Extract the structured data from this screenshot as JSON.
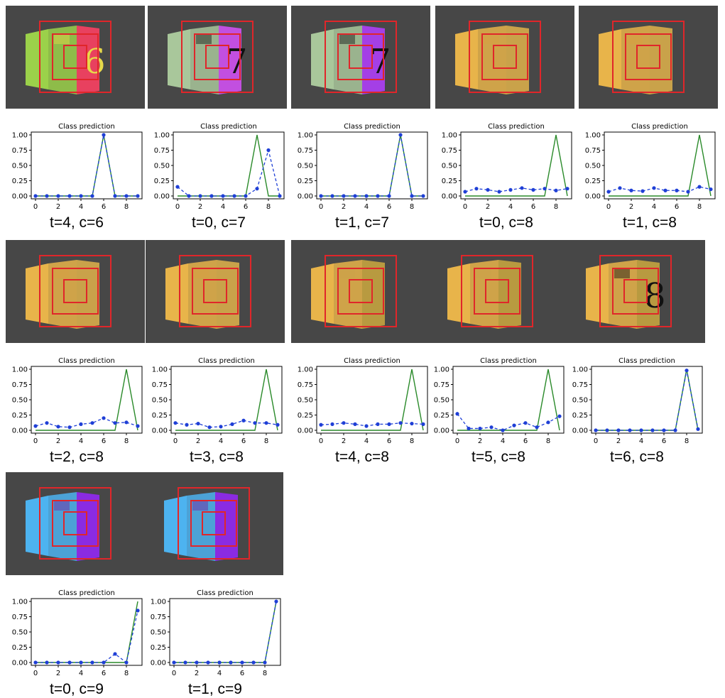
{
  "chart_data": [
    {
      "type": "line",
      "title": "Class prediction",
      "caption": "t=4, c=6",
      "x": [
        0,
        1,
        2,
        3,
        4,
        5,
        6,
        7,
        8,
        9
      ],
      "ylim": [
        0,
        1
      ],
      "xticks": [
        0,
        2,
        4,
        6,
        8
      ],
      "yticks": [
        "0.00",
        "0.25",
        "0.50",
        "0.75",
        "1.00"
      ],
      "series": [
        {
          "style": "solid-green",
          "values": [
            0,
            0,
            0,
            0,
            0,
            0,
            1,
            0,
            0,
            0
          ]
        },
        {
          "style": "dashed-blue-markers",
          "values": [
            0,
            0,
            0,
            0,
            0,
            0,
            1,
            0,
            0,
            0
          ]
        }
      ],
      "scene": {
        "colors": [
          "#9bd14a",
          "#e8415f",
          "#e8d84a"
        ],
        "cue": "6"
      }
    },
    {
      "type": "line",
      "title": "Class prediction",
      "caption": "t=0, c=7",
      "x": [
        0,
        1,
        2,
        3,
        4,
        5,
        6,
        7,
        8,
        9
      ],
      "ylim": [
        0,
        1
      ],
      "xticks": [
        0,
        2,
        4,
        6,
        8
      ],
      "yticks": [
        "0.00",
        "0.25",
        "0.50",
        "0.75",
        "1.00"
      ],
      "series": [
        {
          "style": "solid-green",
          "values": [
            0,
            0,
            0,
            0,
            0,
            0,
            0,
            1,
            0,
            0
          ]
        },
        {
          "style": "dashed-blue-markers",
          "values": [
            0.15,
            0,
            0,
            0,
            0,
            0,
            0,
            0.12,
            0.75,
            0
          ]
        }
      ],
      "scene": {
        "colors": [
          "#a9c79b",
          "#c24fe0",
          "#111111"
        ],
        "cue": "7"
      }
    },
    {
      "type": "line",
      "title": "Class prediction",
      "caption": "t=1, c=7",
      "x": [
        0,
        1,
        2,
        3,
        4,
        5,
        6,
        7,
        8,
        9
      ],
      "ylim": [
        0,
        1
      ],
      "xticks": [
        0,
        2,
        4,
        6,
        8
      ],
      "yticks": [
        "0.00",
        "0.25",
        "0.50",
        "0.75",
        "1.00"
      ],
      "series": [
        {
          "style": "solid-green",
          "values": [
            0,
            0,
            0,
            0,
            0,
            0,
            0,
            1,
            0,
            0
          ]
        },
        {
          "style": "dashed-blue-markers",
          "values": [
            0,
            0,
            0,
            0,
            0,
            0,
            0,
            1,
            0,
            0
          ]
        }
      ],
      "scene": {
        "colors": [
          "#a9c79b",
          "#a43fe6",
          "#111111"
        ],
        "cue": "7"
      }
    },
    {
      "type": "line",
      "title": "Class prediction",
      "caption": "t=0, c=8",
      "x": [
        0,
        1,
        2,
        3,
        4,
        5,
        6,
        7,
        8,
        9
      ],
      "ylim": [
        0,
        1
      ],
      "xticks": [
        0,
        2,
        4,
        6,
        8
      ],
      "yticks": [
        "0.00",
        "0.25",
        "0.50",
        "0.75",
        "1.00"
      ],
      "series": [
        {
          "style": "solid-green",
          "values": [
            0,
            0,
            0,
            0,
            0,
            0,
            0,
            0,
            1,
            0
          ]
        },
        {
          "style": "dashed-blue-markers",
          "values": [
            0.07,
            0.12,
            0.1,
            0.07,
            0.1,
            0.13,
            0.1,
            0.12,
            0.09,
            0.12
          ]
        }
      ],
      "scene": {
        "colors": [
          "#e8b44a",
          "#c9a24a",
          "#d8a040"
        ],
        "cue": ""
      }
    },
    {
      "type": "line",
      "title": "Class prediction",
      "caption": "t=1, c=8",
      "x": [
        0,
        1,
        2,
        3,
        4,
        5,
        6,
        7,
        8,
        9
      ],
      "ylim": [
        0,
        1
      ],
      "xticks": [
        0,
        2,
        4,
        6,
        8
      ],
      "yticks": [
        "0.00",
        "0.25",
        "0.50",
        "0.75",
        "1.00"
      ],
      "series": [
        {
          "style": "solid-green",
          "values": [
            0,
            0,
            0,
            0,
            0,
            0,
            0,
            0,
            1,
            0
          ]
        },
        {
          "style": "dashed-blue-markers",
          "values": [
            0.07,
            0.13,
            0.09,
            0.08,
            0.13,
            0.09,
            0.09,
            0.07,
            0.15,
            0.11
          ]
        }
      ],
      "scene": {
        "colors": [
          "#e8b44a",
          "#c9a24a",
          "#d8a040"
        ],
        "cue": ""
      }
    },
    {
      "type": "line",
      "title": "Class prediction",
      "caption": "t=2, c=8",
      "x": [
        0,
        1,
        2,
        3,
        4,
        5,
        6,
        7,
        8,
        9
      ],
      "ylim": [
        0,
        1
      ],
      "xticks": [
        0,
        2,
        4,
        6,
        8
      ],
      "yticks": [
        "0.00",
        "0.25",
        "0.50",
        "0.75",
        "1.00"
      ],
      "series": [
        {
          "style": "solid-green",
          "values": [
            0,
            0,
            0,
            0,
            0,
            0,
            0,
            0,
            1,
            0
          ]
        },
        {
          "style": "dashed-blue-markers",
          "values": [
            0.07,
            0.12,
            0.06,
            0.05,
            0.1,
            0.12,
            0.2,
            0.12,
            0.13,
            0.07
          ]
        }
      ],
      "scene": {
        "colors": [
          "#e8b44a",
          "#c9a24a",
          "#d8a040"
        ],
        "cue": ""
      }
    },
    {
      "type": "line",
      "title": "Class prediction",
      "caption": "t=3, c=8",
      "x": [
        0,
        1,
        2,
        3,
        4,
        5,
        6,
        7,
        8,
        9
      ],
      "ylim": [
        0,
        1
      ],
      "xticks": [
        0,
        2,
        4,
        6,
        8
      ],
      "yticks": [
        "0.00",
        "0.25",
        "0.50",
        "0.75",
        "1.00"
      ],
      "series": [
        {
          "style": "solid-green",
          "values": [
            0,
            0,
            0,
            0,
            0,
            0,
            0,
            0,
            1,
            0
          ]
        },
        {
          "style": "dashed-blue-markers",
          "values": [
            0.12,
            0.09,
            0.11,
            0.05,
            0.06,
            0.1,
            0.16,
            0.12,
            0.12,
            0.09
          ]
        }
      ],
      "scene": {
        "colors": [
          "#e8b44a",
          "#c9a24a",
          "#d8a040"
        ],
        "cue": ""
      }
    },
    {
      "type": "line",
      "title": "Class prediction",
      "caption": "t=4, c=8",
      "x": [
        0,
        1,
        2,
        3,
        4,
        5,
        6,
        7,
        8,
        9
      ],
      "ylim": [
        0,
        1
      ],
      "xticks": [
        0,
        2,
        4,
        6,
        8
      ],
      "yticks": [
        "0.00",
        "0.25",
        "0.50",
        "0.75",
        "1.00"
      ],
      "series": [
        {
          "style": "solid-green",
          "values": [
            0,
            0,
            0,
            0,
            0,
            0,
            0,
            0,
            1,
            0
          ]
        },
        {
          "style": "dashed-blue-markers",
          "values": [
            0.09,
            0.1,
            0.12,
            0.1,
            0.07,
            0.1,
            0.1,
            0.12,
            0.11,
            0.1
          ]
        }
      ],
      "scene": {
        "colors": [
          "#e8b44a",
          "#b89a40",
          "#c9a24a"
        ],
        "cue": ""
      }
    },
    {
      "type": "line",
      "title": "Class prediction",
      "caption": "t=5, c=8",
      "x": [
        0,
        1,
        2,
        3,
        4,
        5,
        6,
        7,
        8,
        9
      ],
      "ylim": [
        0,
        1
      ],
      "xticks": [
        0,
        2,
        4,
        6,
        8
      ],
      "yticks": [
        "0.00",
        "0.25",
        "0.50",
        "0.75",
        "1.00"
      ],
      "series": [
        {
          "style": "solid-green",
          "values": [
            0,
            0,
            0,
            0,
            0,
            0,
            0,
            0,
            1,
            0
          ]
        },
        {
          "style": "dashed-blue-markers",
          "values": [
            0.27,
            0.03,
            0.03,
            0.05,
            0,
            0.08,
            0.12,
            0.05,
            0.13,
            0.23
          ]
        }
      ],
      "scene": {
        "colors": [
          "#e8b44a",
          "#b89a40",
          "#c9a24a"
        ],
        "cue": ""
      }
    },
    {
      "type": "line",
      "title": "Class prediction",
      "caption": "t=6, c=8",
      "x": [
        0,
        1,
        2,
        3,
        4,
        5,
        6,
        7,
        8,
        9
      ],
      "ylim": [
        0,
        1
      ],
      "xticks": [
        0,
        2,
        4,
        6,
        8
      ],
      "yticks": [
        "0.00",
        "0.25",
        "0.50",
        "0.75",
        "1.00"
      ],
      "series": [
        {
          "style": "solid-green",
          "values": [
            0,
            0,
            0,
            0,
            0,
            0,
            0,
            0,
            1,
            0
          ]
        },
        {
          "style": "dashed-blue-markers",
          "values": [
            0,
            0,
            0,
            0,
            0,
            0,
            0,
            0,
            0.98,
            0.02
          ]
        }
      ],
      "scene": {
        "colors": [
          "#e8b44a",
          "#b89a40",
          "#111111"
        ],
        "cue": "8"
      }
    },
    {
      "type": "line",
      "title": "Class prediction",
      "caption": "t=0, c=9",
      "x": [
        0,
        1,
        2,
        3,
        4,
        5,
        6,
        7,
        8,
        9
      ],
      "ylim": [
        0,
        1
      ],
      "xticks": [
        0,
        2,
        4,
        6,
        8
      ],
      "yticks": [
        "0.00",
        "0.25",
        "0.50",
        "0.75",
        "1.00"
      ],
      "series": [
        {
          "style": "solid-green",
          "values": [
            0,
            0,
            0,
            0,
            0,
            0,
            0,
            0,
            0,
            1
          ]
        },
        {
          "style": "dashed-blue-markers",
          "values": [
            0,
            0,
            0,
            0,
            0,
            0,
            0,
            0.14,
            0,
            0.85
          ]
        }
      ],
      "scene": {
        "colors": [
          "#4db3f0",
          "#8a2be2",
          "#7a1f9e"
        ],
        "cue": ""
      }
    },
    {
      "type": "line",
      "title": "Class prediction",
      "caption": "t=1, c=9",
      "x": [
        0,
        1,
        2,
        3,
        4,
        5,
        6,
        7,
        8,
        9
      ],
      "ylim": [
        0,
        1
      ],
      "xticks": [
        0,
        2,
        4,
        6,
        8
      ],
      "yticks": [
        "0.00",
        "0.25",
        "0.50",
        "0.75",
        "1.00"
      ],
      "series": [
        {
          "style": "solid-green",
          "values": [
            0,
            0,
            0,
            0,
            0,
            0,
            0,
            0,
            0,
            1
          ]
        },
        {
          "style": "dashed-blue-markers",
          "values": [
            0,
            0,
            0,
            0,
            0,
            0,
            0,
            0,
            0,
            1
          ]
        }
      ],
      "scene": {
        "colors": [
          "#4db3f0",
          "#8a2be2",
          "#7a1f9e"
        ],
        "cue": ""
      }
    }
  ]
}
